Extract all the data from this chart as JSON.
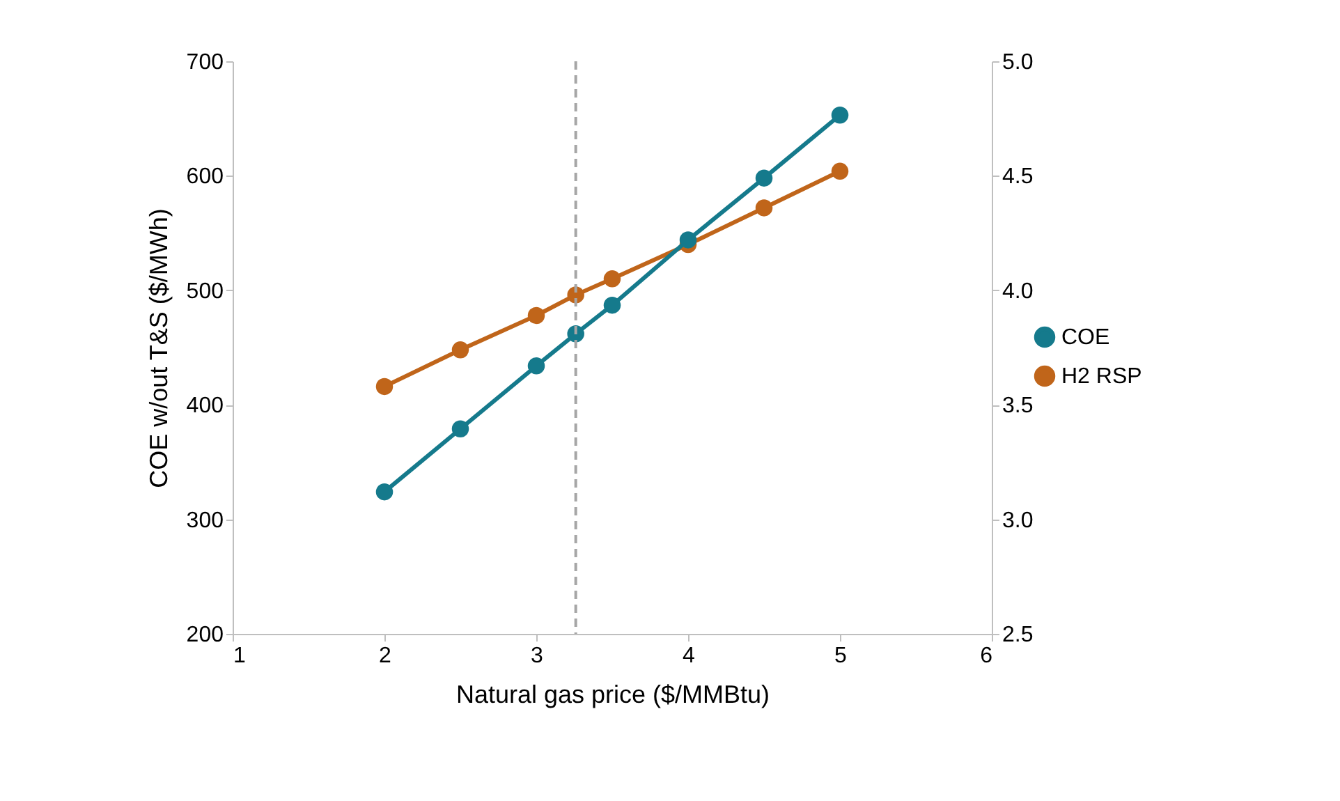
{
  "chart_data": {
    "type": "line",
    "xlabel": "Natural gas price  ($/MMBtu)",
    "ylabel": "COE w/out T&S  ($/MWh)",
    "xlim": [
      1,
      6
    ],
    "xticks": [
      1,
      2,
      3,
      4,
      5,
      6
    ],
    "ylim": [
      200,
      700
    ],
    "yticks": [
      200,
      300,
      400,
      500,
      600,
      700
    ],
    "y2lim": [
      2.5,
      5.0
    ],
    "y2ticks": [
      2.5,
      {
        "value": 3,
        "label": "3.0"
      },
      3.5,
      {
        "value": 4,
        "label": "4.0"
      },
      4.5,
      {
        "value": 5,
        "label": "5.0"
      }
    ],
    "x": [
      2,
      2.5,
      3,
      3.26,
      3.5,
      4,
      4.5,
      5
    ],
    "series": [
      {
        "name": "COE",
        "color": "#157a8c",
        "values": [
          324,
          379,
          434,
          462,
          487,
          544,
          598,
          653
        ]
      },
      {
        "name": "H2 RSP",
        "color": "#c0651a",
        "axis": "y2",
        "values": [
          3.58,
          3.74,
          3.89,
          3.98,
          4.05,
          4.2,
          4.36,
          4.52
        ]
      }
    ],
    "ref_lines": [
      {
        "axis": "x",
        "value": 3.26,
        "color": "#a6a6a6",
        "line_style": "dashed"
      }
    ],
    "grid": false,
    "legend": "right",
    "marker": "circle",
    "line_style": "solid"
  }
}
